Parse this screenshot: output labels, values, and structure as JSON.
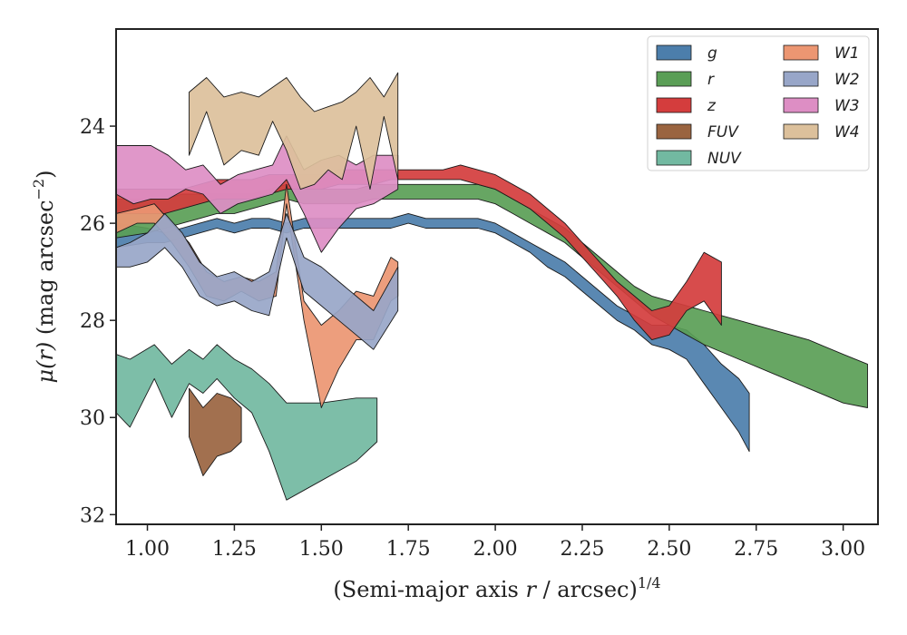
{
  "chart_data": {
    "type": "area",
    "xlabel": "(Semi-major axis r / arcsec)^1/4",
    "ylabel": "μ(r) (mag arcsec^−2)",
    "xlabel_parts": {
      "pre": "(Semi-major axis ",
      "var": "r",
      "post": " / arcsec)",
      "sup": "1/4"
    },
    "ylabel_parts": {
      "var": "μ(r)",
      "post": " (mag arcsec",
      "sup": "−2",
      "close": ")"
    },
    "xlim": [
      0.91,
      3.1
    ],
    "ylim": [
      32.2,
      22.0
    ],
    "y_inverted": true,
    "xticks": [
      1.0,
      1.25,
      1.5,
      1.75,
      2.0,
      2.25,
      2.5,
      2.75,
      3.0
    ],
    "xtick_labels": [
      "1.00",
      "1.25",
      "1.50",
      "1.75",
      "2.00",
      "2.25",
      "2.50",
      "2.75",
      "3.00"
    ],
    "yticks": [
      24,
      26,
      28,
      30,
      32
    ],
    "ytick_labels": [
      "24",
      "26",
      "28",
      "30",
      "32"
    ],
    "grid": false,
    "legend": {
      "placement": "top-right",
      "columns": 2
    },
    "series": [
      {
        "name": "g",
        "color": "#4c7eab",
        "key": "g",
        "x": [
          0.91,
          1.0,
          1.05,
          1.1,
          1.15,
          1.2,
          1.25,
          1.3,
          1.35,
          1.4,
          1.45,
          1.5,
          1.55,
          1.6,
          1.65,
          1.7,
          1.75,
          1.8,
          1.85,
          1.9,
          1.95,
          2.0,
          2.05,
          2.1,
          2.15,
          2.2,
          2.25,
          2.3,
          2.35,
          2.4,
          2.45,
          2.5,
          2.55,
          2.6,
          2.65,
          2.7,
          2.73
        ],
        "y_upper": [
          26.0,
          26.1,
          26.2,
          26.1,
          26.0,
          25.9,
          26.0,
          25.9,
          25.9,
          26.0,
          25.9,
          25.9,
          25.9,
          25.9,
          25.9,
          25.9,
          25.8,
          25.9,
          25.9,
          25.9,
          25.9,
          26.0,
          26.2,
          26.4,
          26.6,
          26.8,
          27.1,
          27.4,
          27.7,
          27.9,
          28.1,
          28.1,
          28.2,
          28.5,
          28.9,
          29.2,
          29.5
        ],
        "y_lower": [
          26.5,
          26.4,
          26.4,
          26.3,
          26.2,
          26.1,
          26.2,
          26.1,
          26.1,
          26.2,
          26.1,
          26.1,
          26.1,
          26.1,
          26.1,
          26.1,
          26.0,
          26.1,
          26.1,
          26.1,
          26.1,
          26.2,
          26.4,
          26.6,
          26.9,
          27.1,
          27.4,
          27.7,
          28.0,
          28.2,
          28.5,
          28.6,
          28.8,
          29.3,
          29.8,
          30.3,
          30.7
        ]
      },
      {
        "name": "r",
        "color": "#5a9e56",
        "key": "r",
        "x": [
          0.91,
          1.0,
          1.05,
          1.1,
          1.15,
          1.2,
          1.25,
          1.3,
          1.35,
          1.4,
          1.45,
          1.5,
          1.55,
          1.6,
          1.65,
          1.7,
          1.75,
          1.8,
          1.85,
          1.9,
          1.95,
          2.0,
          2.05,
          2.1,
          2.15,
          2.2,
          2.25,
          2.3,
          2.35,
          2.4,
          2.45,
          2.5,
          2.55,
          2.6,
          2.7,
          2.8,
          2.9,
          3.0,
          3.07
        ],
        "y_upper": [
          25.5,
          25.5,
          25.5,
          25.4,
          25.4,
          25.4,
          25.4,
          25.4,
          25.3,
          25.2,
          25.3,
          25.3,
          25.3,
          25.3,
          25.2,
          25.2,
          25.2,
          25.2,
          25.2,
          25.2,
          25.2,
          25.3,
          25.5,
          25.7,
          25.9,
          26.1,
          26.4,
          26.7,
          27.0,
          27.3,
          27.5,
          27.6,
          27.7,
          27.8,
          28.0,
          28.2,
          28.4,
          28.7,
          28.9
        ],
        "y_lower": [
          26.3,
          26.2,
          26.1,
          26.0,
          25.9,
          25.8,
          25.8,
          25.7,
          25.6,
          25.5,
          25.6,
          25.6,
          25.6,
          25.6,
          25.5,
          25.5,
          25.5,
          25.5,
          25.5,
          25.5,
          25.5,
          25.6,
          25.8,
          26.0,
          26.2,
          26.4,
          26.7,
          27.0,
          27.3,
          27.6,
          27.9,
          28.1,
          28.3,
          28.5,
          28.8,
          29.1,
          29.4,
          29.7,
          29.8
        ]
      },
      {
        "name": "z",
        "color": "#d43d3d",
        "key": "z",
        "x": [
          0.91,
          1.0,
          1.05,
          1.1,
          1.15,
          1.2,
          1.25,
          1.3,
          1.35,
          1.4,
          1.45,
          1.5,
          1.55,
          1.6,
          1.65,
          1.7,
          1.75,
          1.8,
          1.85,
          1.9,
          1.95,
          2.0,
          2.05,
          2.1,
          2.15,
          2.2,
          2.25,
          2.3,
          2.35,
          2.4,
          2.45,
          2.5,
          2.55,
          2.6,
          2.65
        ],
        "y_upper": [
          25.3,
          25.3,
          25.3,
          25.3,
          25.2,
          25.1,
          25.1,
          25.1,
          25.0,
          25.0,
          25.0,
          25.0,
          24.9,
          24.9,
          24.9,
          24.9,
          24.9,
          24.9,
          24.9,
          24.8,
          24.9,
          25.0,
          25.2,
          25.4,
          25.7,
          26.0,
          26.4,
          26.8,
          27.2,
          27.5,
          27.8,
          27.7,
          27.2,
          26.6,
          26.8
        ],
        "y_lower": [
          25.8,
          25.8,
          25.8,
          25.7,
          25.6,
          25.5,
          25.5,
          25.5,
          25.4,
          25.3,
          25.3,
          25.3,
          25.2,
          25.2,
          25.2,
          25.1,
          25.1,
          25.1,
          25.1,
          25.1,
          25.2,
          25.3,
          25.5,
          25.7,
          26.0,
          26.3,
          26.7,
          27.1,
          27.5,
          28.0,
          28.4,
          28.3,
          27.8,
          27.6,
          28.1
        ]
      },
      {
        "name": "FUV",
        "color": "#9a6440",
        "key": "FUV",
        "x": [
          1.12,
          1.16,
          1.2,
          1.24,
          1.27
        ],
        "y_upper": [
          29.4,
          29.8,
          29.5,
          29.6,
          29.8
        ],
        "y_lower": [
          30.4,
          31.2,
          30.8,
          30.7,
          30.5
        ]
      },
      {
        "name": "NUV",
        "color": "#72b9a1",
        "key": "NUV",
        "x": [
          0.91,
          0.95,
          1.02,
          1.07,
          1.12,
          1.16,
          1.2,
          1.25,
          1.3,
          1.35,
          1.4,
          1.5,
          1.6,
          1.66
        ],
        "y_upper": [
          28.7,
          28.8,
          28.5,
          28.9,
          28.6,
          28.8,
          28.5,
          28.8,
          29.0,
          29.3,
          29.7,
          29.7,
          29.6,
          29.6
        ],
        "y_lower": [
          29.9,
          30.2,
          29.2,
          30.0,
          29.3,
          29.5,
          29.2,
          29.6,
          29.9,
          30.7,
          31.7,
          31.3,
          30.9,
          30.5
        ]
      },
      {
        "name": "W1",
        "color": "#ec9672",
        "key": "W1",
        "x": [
          0.91,
          0.97,
          1.02,
          1.07,
          1.12,
          1.17,
          1.22,
          1.27,
          1.32,
          1.37,
          1.4,
          1.45,
          1.5,
          1.55,
          1.6,
          1.65,
          1.7,
          1.72
        ],
        "y_upper": [
          25.8,
          25.7,
          25.6,
          26.0,
          26.4,
          27.0,
          27.2,
          27.1,
          27.2,
          27.0,
          25.2,
          27.6,
          28.1,
          27.8,
          27.4,
          27.5,
          26.7,
          26.8
        ],
        "y_lower": [
          26.2,
          26.0,
          26.0,
          26.4,
          26.9,
          27.5,
          27.6,
          27.4,
          27.6,
          27.5,
          25.6,
          28.0,
          29.8,
          29.0,
          28.4,
          28.4,
          27.6,
          27.5
        ]
      },
      {
        "name": "W2",
        "color": "#98a6c8",
        "key": "W2",
        "x": [
          0.91,
          0.95,
          1.0,
          1.05,
          1.1,
          1.15,
          1.2,
          1.25,
          1.3,
          1.35,
          1.4,
          1.45,
          1.5,
          1.55,
          1.6,
          1.65,
          1.72
        ],
        "y_upper": [
          26.5,
          26.4,
          26.2,
          25.8,
          26.2,
          26.8,
          27.1,
          27.0,
          27.2,
          27.0,
          25.8,
          26.7,
          26.9,
          27.2,
          27.5,
          27.8,
          26.9
        ],
        "y_lower": [
          26.9,
          26.9,
          26.8,
          26.5,
          26.9,
          27.5,
          27.7,
          27.6,
          27.8,
          27.9,
          26.3,
          27.4,
          27.7,
          28.0,
          28.3,
          28.6,
          27.8
        ]
      },
      {
        "name": "W3",
        "color": "#dd8ec4",
        "key": "W3",
        "x": [
          0.91,
          0.96,
          1.01,
          1.06,
          1.11,
          1.16,
          1.21,
          1.26,
          1.31,
          1.36,
          1.4,
          1.45,
          1.5,
          1.55,
          1.6,
          1.65,
          1.72
        ],
        "y_upper": [
          24.4,
          24.4,
          24.4,
          24.6,
          24.9,
          24.8,
          25.2,
          25.0,
          24.9,
          24.8,
          24.2,
          24.9,
          24.7,
          24.6,
          24.8,
          24.6,
          24.6
        ],
        "y_lower": [
          25.4,
          25.6,
          25.5,
          25.5,
          25.3,
          25.4,
          25.8,
          25.6,
          25.5,
          25.4,
          25.1,
          25.8,
          26.6,
          26.1,
          25.7,
          25.6,
          25.3
        ]
      },
      {
        "name": "W4",
        "color": "#dcc09b",
        "key": "W4",
        "x": [
          1.12,
          1.17,
          1.22,
          1.27,
          1.32,
          1.36,
          1.4,
          1.44,
          1.48,
          1.52,
          1.56,
          1.6,
          1.64,
          1.68,
          1.72
        ],
        "y_upper": [
          23.3,
          23.0,
          23.4,
          23.3,
          23.4,
          23.2,
          23.0,
          23.4,
          23.7,
          23.6,
          23.5,
          23.3,
          23.0,
          23.4,
          22.9
        ],
        "y_lower": [
          24.6,
          23.7,
          24.8,
          24.5,
          24.6,
          23.9,
          24.5,
          25.3,
          25.2,
          24.9,
          25.1,
          24.0,
          25.3,
          23.8,
          25.1
        ]
      }
    ]
  }
}
